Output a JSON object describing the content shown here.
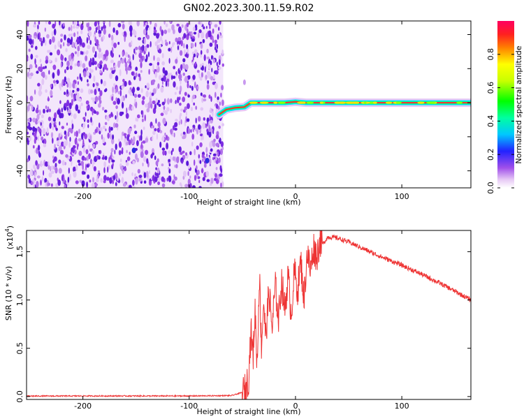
{
  "title": "GN02.2023.300.11.59.R02",
  "chart_data": [
    {
      "type": "heatmap",
      "xlabel": "Height of straight line (km)",
      "ylabel": "Frequency (Hz)",
      "xlim": [
        -253,
        165
      ],
      "ylim": [
        -50,
        48
      ],
      "xticks": [
        -200,
        -100,
        0,
        100
      ],
      "yticks": [
        40,
        20,
        0,
        -20,
        -40
      ],
      "noise_region_x": [
        -253,
        -68
      ],
      "signal_track": {
        "x": [
          -72,
          -65,
          -57,
          -48,
          -42,
          -32,
          -20,
          -10,
          0,
          10,
          30,
          60,
          90,
          120,
          165
        ],
        "frequency": [
          -7,
          -4,
          -3,
          -2.5,
          0,
          0,
          0,
          0,
          0.5,
          0,
          0,
          0,
          0,
          0,
          0
        ]
      },
      "colorbar": {
        "label": "Normalized spectral amplitude",
        "range": [
          0.0,
          1.0
        ],
        "ticks": [
          "0.0",
          "0.2",
          "0.4",
          "0.6",
          "0.8"
        ]
      }
    },
    {
      "type": "line",
      "xlabel": "Height of straight line (km)",
      "ylabel": "SNR (10 * v/v)",
      "scale_label": "(x10",
      "scale_exp": "4",
      "xlim": [
        -253,
        165
      ],
      "ylim": [
        -0.03,
        1.72
      ],
      "xticks": [
        -200,
        -100,
        0,
        100
      ],
      "yticks": [
        0.0,
        0.5,
        1.0,
        1.5
      ],
      "series": [
        {
          "color": "#ee3333",
          "x": [
            -253,
            -200,
            -150,
            -100,
            -60,
            -48,
            -44,
            -42,
            -40,
            -38,
            -36,
            -34,
            -32,
            -30,
            -28,
            -25,
            -22,
            -19,
            -16,
            -13,
            -10,
            -7,
            -4,
            -1,
            2,
            5,
            8,
            11,
            14,
            17,
            20,
            23,
            26,
            30,
            35,
            40,
            50,
            60,
            80,
            100,
            120,
            140,
            165
          ],
          "y": [
            0.005,
            0.006,
            0.006,
            0.006,
            0.01,
            0.05,
            0.2,
            0.7,
            0.4,
            0.9,
            0.3,
            1.3,
            0.5,
            1.0,
            0.6,
            1.1,
            0.7,
            1.15,
            0.8,
            1.2,
            0.9,
            1.25,
            0.85,
            1.3,
            1.1,
            1.4,
            1.0,
            1.5,
            1.3,
            1.55,
            1.45,
            1.62,
            1.58,
            1.65,
            1.65,
            1.64,
            1.6,
            1.55,
            1.45,
            1.36,
            1.26,
            1.15,
            1.0
          ]
        }
      ]
    }
  ]
}
